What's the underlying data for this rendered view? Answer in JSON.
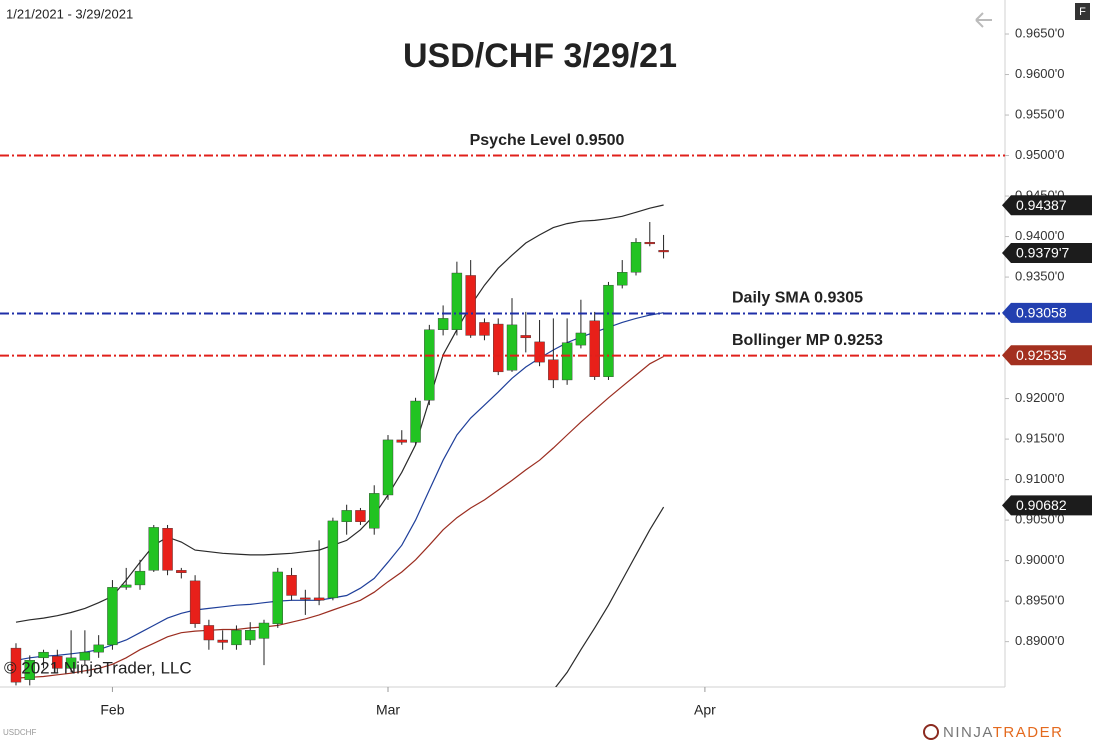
{
  "header": {
    "date_range": "1/21/2021 - 3/29/2021",
    "icon_label": "F",
    "watermark": "© 2021 NinjaTrader, LLC",
    "symbol": "USDCHF",
    "logo_left": "NINJA",
    "logo_right": "TRADER"
  },
  "chart_data": {
    "type": "candlestick",
    "title": "USD/CHF 3/29/21",
    "up_color": "#22c322",
    "down_color": "#e8201a",
    "open": [
      0.8892,
      0.8853,
      0.888,
      0.8882,
      0.8867,
      0.8877,
      0.8887,
      0.8896,
      0.8967,
      0.897,
      0.8988,
      0.904,
      0.8988,
      0.8975,
      0.892,
      0.8902,
      0.8896,
      0.8902,
      0.8904,
      0.8922,
      0.8982,
      0.8954,
      0.8954,
      0.8954,
      0.9048,
      0.9062,
      0.904,
      0.9081,
      0.9149,
      0.9146,
      0.9198,
      0.9285,
      0.9285,
      0.9352,
      0.9294,
      0.9292,
      0.9235,
      0.9278,
      0.927,
      0.9248,
      0.9223,
      0.9266,
      0.9296,
      0.9227,
      0.934,
      0.9356,
      0.9393,
      0.9383
    ],
    "high": [
      0.8898,
      0.8883,
      0.889,
      0.889,
      0.8914,
      0.8914,
      0.8908,
      0.8976,
      0.8991,
      0.9001,
      0.9044,
      0.9044,
      0.8991,
      0.8982,
      0.8927,
      0.8914,
      0.892,
      0.8924,
      0.8927,
      0.8991,
      0.8991,
      0.8964,
      0.9025,
      0.9053,
      0.9069,
      0.9065,
      0.9093,
      0.9155,
      0.9161,
      0.9201,
      0.9291,
      0.9315,
      0.9369,
      0.9371,
      0.9299,
      0.9299,
      0.9324,
      0.9307,
      0.9297,
      0.9299,
      0.9299,
      0.9322,
      0.9307,
      0.9344,
      0.9371,
      0.9398,
      0.9418,
      0.9402
    ],
    "low": [
      0.8846,
      0.8846,
      0.8867,
      0.8862,
      0.8862,
      0.8871,
      0.888,
      0.889,
      0.8964,
      0.8964,
      0.8986,
      0.8982,
      0.8978,
      0.8917,
      0.889,
      0.889,
      0.889,
      0.8896,
      0.8871,
      0.8917,
      0.8951,
      0.8933,
      0.8945,
      0.8951,
      0.9032,
      0.9044,
      0.9032,
      0.9075,
      0.9143,
      0.9143,
      0.9192,
      0.9278,
      0.9278,
      0.9275,
      0.9272,
      0.9229,
      0.9233,
      0.9257,
      0.924,
      0.9213,
      0.9217,
      0.9262,
      0.9223,
      0.9223,
      0.9336,
      0.9352,
      0.9388,
      0.9373
    ],
    "close": [
      0.885,
      0.8877,
      0.8887,
      0.8867,
      0.888,
      0.8887,
      0.8896,
      0.8967,
      0.897,
      0.8987,
      0.9041,
      0.8988,
      0.8985,
      0.8922,
      0.8902,
      0.8899,
      0.8914,
      0.8914,
      0.8923,
      0.8986,
      0.8957,
      0.8953,
      0.8951,
      0.9049,
      0.9062,
      0.9048,
      0.9083,
      0.9149,
      0.9146,
      0.9197,
      0.9285,
      0.9299,
      0.9355,
      0.9278,
      0.9278,
      0.9233,
      0.9291,
      0.9275,
      0.9245,
      0.9223,
      0.9269,
      0.9281,
      0.9227,
      0.934,
      0.9356,
      0.9393,
      0.9391,
      0.9381
    ],
    "overlays": [
      {
        "color": "#2a2a2a",
        "values": [
          0.8924,
          0.8927,
          0.8929,
          0.8932,
          0.8936,
          0.8941,
          0.8948,
          0.8956,
          0.8976,
          0.8998,
          0.9019,
          0.9029,
          0.9023,
          0.9013,
          0.9011,
          0.9009,
          0.9008,
          0.9007,
          0.9007,
          0.9008,
          0.9009,
          0.9011,
          0.9013,
          0.9019,
          0.9025,
          0.9038,
          0.9056,
          0.9081,
          0.9109,
          0.9143,
          0.9198,
          0.9254,
          0.9285,
          0.9315,
          0.934,
          0.9361,
          0.9377,
          0.9392,
          0.9402,
          0.9411,
          0.9416,
          0.9419,
          0.942,
          0.9422,
          0.9425,
          0.943,
          0.9435,
          0.9439
        ]
      },
      {
        "color": "#1f3f9a",
        "values": [
          0.8877,
          0.888,
          0.8882,
          0.8883,
          0.8885,
          0.8887,
          0.889,
          0.8896,
          0.8902,
          0.8911,
          0.892,
          0.8929,
          0.8935,
          0.8939,
          0.8941,
          0.8943,
          0.8945,
          0.8946,
          0.8948,
          0.895,
          0.8951,
          0.8951,
          0.8951,
          0.8954,
          0.8957,
          0.8966,
          0.8978,
          0.8998,
          0.9019,
          0.905,
          0.9087,
          0.9124,
          0.9155,
          0.9176,
          0.9192,
          0.9208,
          0.9225,
          0.9239,
          0.925,
          0.926,
          0.9269,
          0.9276,
          0.9282,
          0.9288,
          0.9294,
          0.9299,
          0.9303,
          0.9306
        ]
      },
      {
        "color": "#9b2d20",
        "values": [
          0.8855,
          0.8856,
          0.8857,
          0.8859,
          0.8861,
          0.8864,
          0.8867,
          0.8872,
          0.888,
          0.889,
          0.8898,
          0.8906,
          0.8911,
          0.8913,
          0.8914,
          0.8915,
          0.8915,
          0.8917,
          0.8918,
          0.892,
          0.8924,
          0.8928,
          0.8933,
          0.8939,
          0.8945,
          0.8951,
          0.8961,
          0.8974,
          0.8986,
          0.9001,
          0.9019,
          0.9038,
          0.9053,
          0.9065,
          0.9075,
          0.9087,
          0.9099,
          0.9112,
          0.9124,
          0.9139,
          0.9155,
          0.9171,
          0.9186,
          0.9201,
          0.9215,
          0.9229,
          0.9243,
          0.9252
        ]
      },
      {
        "color": "#2a2a2a",
        "values": [
          null,
          null,
          null,
          null,
          null,
          null,
          null,
          null,
          null,
          null,
          null,
          null,
          null,
          null,
          null,
          null,
          null,
          null,
          null,
          null,
          null,
          null,
          null,
          null,
          null,
          null,
          null,
          null,
          null,
          null,
          null,
          null,
          null,
          null,
          null,
          null,
          null,
          null,
          null,
          0.884,
          0.8862,
          0.889,
          0.8917,
          0.8945,
          0.8976,
          0.9007,
          0.9038,
          0.9066
        ]
      }
    ],
    "levels": [
      {
        "value": 0.95,
        "label": "Psyche Level 0.9500",
        "color": "#e0201b"
      },
      {
        "value": 0.9305,
        "label": "Daily SMA 0.9305",
        "color": "#1f2fa8"
      },
      {
        "value": 0.9253,
        "label": "Bollinger MP 0.9253",
        "color": "#e0201b"
      }
    ],
    "price_markers": [
      {
        "value": 0.94387,
        "color": "#1c1c1c"
      },
      {
        "value": 0.93797,
        "label": "0.9379'7",
        "color": "#1c1c1c"
      },
      {
        "value": 0.93058,
        "color": "#2340b0"
      },
      {
        "value": 0.92535,
        "color": "#a3301f"
      },
      {
        "value": 0.90682,
        "color": "#1c1c1c"
      }
    ],
    "xlim": [
      -1.16,
      71.78
    ],
    "xticks": [
      {
        "value": 7,
        "label": "Feb"
      },
      {
        "value": 27,
        "label": "Mar"
      },
      {
        "value": 50,
        "label": "Apr"
      }
    ],
    "ylim": [
      0.8844,
      0.9692
    ],
    "yticks": [
      {
        "value": 0.965,
        "label": "0.9650'0"
      },
      {
        "value": 0.96,
        "label": "0.9600'0"
      },
      {
        "value": 0.955,
        "label": "0.9550'0"
      },
      {
        "value": 0.95,
        "label": "0.9500'0"
      },
      {
        "value": 0.945,
        "label": "0.9450'0"
      },
      {
        "value": 0.94,
        "label": "0.9400'0"
      },
      {
        "value": 0.935,
        "label": "0.9350'0"
      },
      {
        "value": 0.93,
        "label": "0.9300'0"
      },
      {
        "value": 0.925,
        "label": "0.9250'0"
      },
      {
        "value": 0.92,
        "label": "0.9200'0"
      },
      {
        "value": 0.915,
        "label": "0.9150'0"
      },
      {
        "value": 0.91,
        "label": "0.9100'0"
      },
      {
        "value": 0.905,
        "label": "0.9050'0"
      },
      {
        "value": 0.9,
        "label": "0.9000'0"
      },
      {
        "value": 0.895,
        "label": "0.8950'0"
      },
      {
        "value": 0.89,
        "label": "0.8900'0"
      }
    ],
    "grid": false
  }
}
